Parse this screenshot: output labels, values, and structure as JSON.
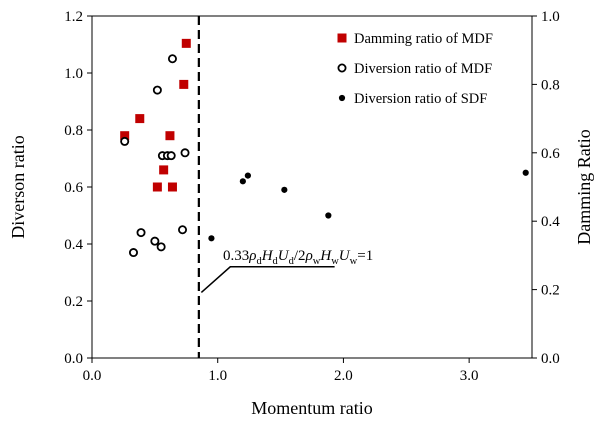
{
  "chart_data": {
    "type": "scatter",
    "xlabel": "Momentum ratio",
    "ylabel": "Diverson ratio",
    "y2label": "Damming Ratio",
    "xlim": [
      0,
      3.5
    ],
    "ylim": [
      0,
      1.2
    ],
    "y2lim": [
      0,
      1.0
    ],
    "x_ticks": [
      "0.0",
      "1.0",
      "2.0",
      "3.0"
    ],
    "x_tick_values": [
      0,
      1,
      2,
      3
    ],
    "y_ticks": [
      "0.0",
      "0.2",
      "0.4",
      "0.6",
      "0.8",
      "1.0",
      "1.2"
    ],
    "y_tick_values": [
      0,
      0.2,
      0.4,
      0.6,
      0.8,
      1.0,
      1.2
    ],
    "y2_ticks": [
      "0.0",
      "0.2",
      "0.4",
      "0.6",
      "0.8",
      "1.0"
    ],
    "y2_tick_values": [
      0,
      0.2,
      0.4,
      0.6,
      0.8,
      1.0
    ],
    "legend_position": "top-right",
    "grid": false,
    "series": [
      {
        "name": "Damming ratio of MDF",
        "marker": "square",
        "color": "#c00000",
        "axis": "right",
        "points": [
          {
            "x": 0.26,
            "y": 0.65
          },
          {
            "x": 0.38,
            "y": 0.7
          },
          {
            "x": 0.52,
            "y": 0.5
          },
          {
            "x": 0.57,
            "y": 0.55
          },
          {
            "x": 0.62,
            "y": 0.65
          },
          {
            "x": 0.64,
            "y": 0.5
          },
          {
            "x": 0.73,
            "y": 0.8
          },
          {
            "x": 0.75,
            "y": 0.92
          }
        ]
      },
      {
        "name": "Diversion ratio of MDF",
        "marker": "open-circle",
        "color": "#000000",
        "axis": "left",
        "points": [
          {
            "x": 0.26,
            "y": 0.76
          },
          {
            "x": 0.33,
            "y": 0.37
          },
          {
            "x": 0.39,
            "y": 0.44
          },
          {
            "x": 0.5,
            "y": 0.41
          },
          {
            "x": 0.52,
            "y": 0.94
          },
          {
            "x": 0.55,
            "y": 0.39
          },
          {
            "x": 0.56,
            "y": 0.71
          },
          {
            "x": 0.6,
            "y": 0.71
          },
          {
            "x": 0.63,
            "y": 0.71
          },
          {
            "x": 0.64,
            "y": 1.05
          },
          {
            "x": 0.72,
            "y": 0.45
          },
          {
            "x": 0.74,
            "y": 0.72
          }
        ]
      },
      {
        "name": "Diversion ratio of SDF",
        "marker": "filled-circle",
        "color": "#000000",
        "axis": "left",
        "points": [
          {
            "x": 0.95,
            "y": 0.42
          },
          {
            "x": 1.2,
            "y": 0.62
          },
          {
            "x": 1.24,
            "y": 0.64
          },
          {
            "x": 1.53,
            "y": 0.59
          },
          {
            "x": 1.88,
            "y": 0.5
          },
          {
            "x": 3.45,
            "y": 0.65
          }
        ]
      }
    ],
    "reference_line": {
      "x": 0.85,
      "style": "dashed"
    },
    "annotation": {
      "text": "0.33ρdHdUd/2ρwHwUw=1",
      "parts": [
        {
          "t": "0.33",
          "sub": false
        },
        {
          "t": "ρ",
          "sub": false,
          "italic": true
        },
        {
          "t": "d",
          "sub": true
        },
        {
          "t": "H",
          "sub": false,
          "italic": true
        },
        {
          "t": "d",
          "sub": true
        },
        {
          "t": "U",
          "sub": false,
          "italic": true
        },
        {
          "t": "d",
          "sub": true
        },
        {
          "t": "/2",
          "sub": false
        },
        {
          "t": "ρ",
          "sub": false,
          "italic": true
        },
        {
          "t": "w",
          "sub": true
        },
        {
          "t": "H",
          "sub": false,
          "italic": true
        },
        {
          "t": "w",
          "sub": true
        },
        {
          "t": "U",
          "sub": false,
          "italic": true
        },
        {
          "t": "w",
          "sub": true
        },
        {
          "t": "=1",
          "sub": false
        }
      ],
      "pointer_x": 0.87,
      "pointer_y": 0.23,
      "elbow_x": 1.1,
      "elbow_y": 0.32,
      "end_x": 1.93,
      "end_y": 0.32
    }
  }
}
